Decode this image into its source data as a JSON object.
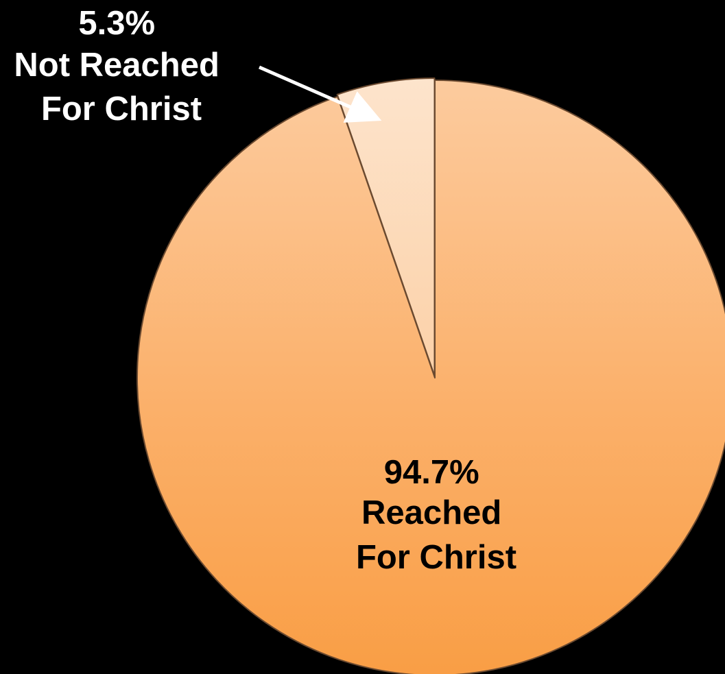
{
  "chart_data": {
    "type": "pie",
    "slices": [
      {
        "label_lines": [
          "94.7%",
          "Reached",
          "For Christ"
        ],
        "percent": "94.7%",
        "name": "Reached For Christ",
        "value": 94.7,
        "color": "#FBB87C"
      },
      {
        "label_lines": [
          "5.3%",
          "Not Reached",
          "For Christ"
        ],
        "percent": "5.3%",
        "name": "Not Reached For Christ",
        "value": 5.3,
        "color": "#FDD8B4"
      }
    ],
    "legend": "none",
    "background": "#000000",
    "label_colors": [
      "#000000",
      "#FFFFFF"
    ],
    "exploded_slice": "Not Reached For Christ"
  }
}
